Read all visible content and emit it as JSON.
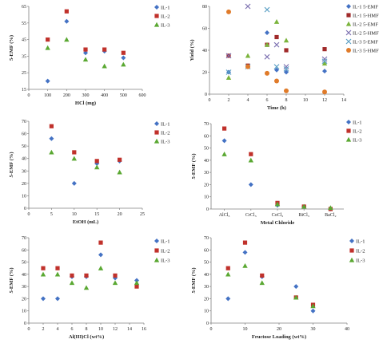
{
  "colors": {
    "il1": "#4472c4",
    "il2": "#c0312b",
    "il3": "#5aa832",
    "emf1": "#4472c4",
    "emf2": "#a02a2a",
    "emf3": "#7bb43c",
    "hmf1": "#7b6fb0",
    "hmf2": "#5a9fc4",
    "hmf3": "#e07b2a",
    "axis": "#808080"
  },
  "chart_data": [
    {
      "id": "hcl",
      "type": "scatter",
      "xlabel": "HCl (mg)",
      "ylabel": "5-EMF (%)",
      "xlim": [
        0,
        600
      ],
      "ylim": [
        15,
        65
      ],
      "xticks": [
        0,
        100,
        200,
        300,
        400,
        500,
        600
      ],
      "yticks": [
        15,
        25,
        35,
        45,
        55,
        65
      ],
      "legend_position": "top-right",
      "series": [
        {
          "name": "IL-1",
          "marker": "diamond",
          "color_key": "il1",
          "x": [
            100,
            200,
            300,
            400,
            500
          ],
          "y": [
            20,
            56,
            37,
            38,
            34
          ]
        },
        {
          "name": "IL-2",
          "marker": "square",
          "color_key": "il2",
          "x": [
            100,
            200,
            300,
            400,
            500
          ],
          "y": [
            45,
            62,
            39,
            39,
            37
          ]
        },
        {
          "name": "IL-3",
          "marker": "triangle",
          "color_key": "il3",
          "x": [
            100,
            200,
            300,
            400,
            500
          ],
          "y": [
            40,
            45,
            33,
            29,
            30
          ]
        }
      ]
    },
    {
      "id": "time",
      "type": "scatter",
      "xlabel": "Time (h)",
      "ylabel": "Yield (%)",
      "xlim": [
        0,
        14
      ],
      "ylim": [
        0,
        80
      ],
      "xticks": [
        0,
        2,
        4,
        6,
        8,
        10,
        12,
        14
      ],
      "yticks": [
        0,
        20,
        40,
        60,
        80
      ],
      "legend_position": "right",
      "series": [
        {
          "name": "IL-1 5-EMF",
          "marker": "diamond",
          "color_key": "emf1",
          "x": [
            2,
            4,
            6,
            7,
            8,
            12
          ],
          "y": [
            20,
            25,
            56,
            22,
            20,
            21
          ]
        },
        {
          "name": "IL-1 5-HMF",
          "marker": "square",
          "color_key": "emf2",
          "x": [
            2,
            4,
            6,
            7,
            8,
            12
          ],
          "y": [
            35,
            26,
            45,
            52,
            40,
            41
          ]
        },
        {
          "name": "IL-2 5-EMF",
          "marker": "triangle",
          "color_key": "emf3",
          "x": [
            2,
            4,
            6,
            7,
            8,
            12
          ],
          "y": [
            15,
            35,
            45,
            66,
            49,
            28
          ]
        },
        {
          "name": "IL-2 5-HMF",
          "marker": "x",
          "color_key": "hmf1",
          "x": [
            2,
            4,
            6,
            7,
            8,
            12
          ],
          "y": [
            35,
            80,
            34,
            45,
            25,
            32
          ]
        },
        {
          "name": "IL-3 5-EMF",
          "marker": "x",
          "color_key": "hmf2",
          "x": [
            2,
            4,
            6,
            7,
            8,
            12
          ],
          "y": [
            20,
            25,
            77,
            25,
            23,
            30
          ]
        },
        {
          "name": "IL-3 5-HMF",
          "marker": "circle",
          "color_key": "hmf3",
          "x": [
            2,
            4,
            6,
            7,
            8,
            12
          ],
          "y": [
            75,
            25,
            19,
            12,
            3,
            2
          ]
        }
      ]
    },
    {
      "id": "etoh",
      "type": "scatter",
      "xlabel": "EtOH (mL)",
      "ylabel": "5-EMF (%)",
      "xlim": [
        0,
        25
      ],
      "ylim": [
        0,
        70
      ],
      "xticks": [
        0,
        5,
        10,
        15,
        20,
        25
      ],
      "yticks": [
        0,
        10,
        20,
        30,
        40,
        50,
        60,
        70
      ],
      "legend_position": "top-right",
      "series": [
        {
          "name": "IL-1",
          "marker": "diamond",
          "color_key": "il1",
          "x": [
            5,
            10,
            15,
            20
          ],
          "y": [
            56,
            20,
            36,
            38
          ]
        },
        {
          "name": "IL-2",
          "marker": "square",
          "color_key": "il2",
          "x": [
            5,
            10,
            15,
            20
          ],
          "y": [
            66,
            45,
            38,
            39
          ]
        },
        {
          "name": "IL-3",
          "marker": "triangle",
          "color_key": "il3",
          "x": [
            5,
            10,
            15,
            20
          ],
          "y": [
            45,
            40,
            33,
            29
          ]
        }
      ]
    },
    {
      "id": "metal",
      "type": "scatter",
      "xlabel": "Metal Chloride",
      "ylabel": "5-EMF (%)",
      "categories": [
        "AlCl₃",
        "CrCl₃",
        "CoCl₂",
        "BiCl₃",
        "BaCl₂"
      ],
      "ylim": [
        0,
        70
      ],
      "legend_position": "top-right",
      "series": [
        {
          "name": "IL-1",
          "marker": "diamond",
          "color_key": "il1",
          "values": [
            56,
            20,
            3,
            2,
            0
          ]
        },
        {
          "name": "IL-2",
          "marker": "square",
          "color_key": "il2",
          "values": [
            66,
            45,
            5,
            2,
            0
          ]
        },
        {
          "name": "IL-3",
          "marker": "triangle",
          "color_key": "il3",
          "values": [
            45,
            40,
            4,
            2,
            1
          ]
        }
      ]
    },
    {
      "id": "al",
      "type": "scatter",
      "xlabel": "Al(III)Cl (wt%)",
      "ylabel": "5-EMF (%)",
      "xlim": [
        0,
        16
      ],
      "ylim": [
        0,
        70
      ],
      "xticks": [
        0,
        2,
        4,
        6,
        8,
        10,
        12,
        14,
        16
      ],
      "yticks": [
        0,
        10,
        20,
        30,
        40,
        50,
        60,
        70
      ],
      "legend_position": "top-right",
      "series": [
        {
          "name": "IL-1",
          "marker": "diamond",
          "color_key": "il1",
          "x": [
            2,
            4,
            6,
            8,
            10,
            12,
            15
          ],
          "y": [
            20,
            20,
            38,
            38,
            56,
            37,
            35
          ]
        },
        {
          "name": "IL-2",
          "marker": "square",
          "color_key": "il2",
          "x": [
            2,
            4,
            6,
            8,
            10,
            12,
            15
          ],
          "y": [
            45,
            45,
            39,
            39,
            66,
            39,
            30
          ]
        },
        {
          "name": "IL-3",
          "marker": "triangle",
          "color_key": "il3",
          "x": [
            2,
            4,
            6,
            8,
            10,
            12,
            15
          ],
          "y": [
            40,
            40,
            33,
            29,
            45,
            33,
            33
          ]
        }
      ]
    },
    {
      "id": "fructose",
      "type": "scatter",
      "xlabel": "Fructose Loading (wt%)",
      "ylabel": "5-EMF (%)",
      "xlim": [
        0,
        40
      ],
      "ylim": [
        0,
        70
      ],
      "xticks": [
        0,
        10,
        20,
        30,
        40
      ],
      "yticks": [
        0,
        10,
        20,
        30,
        40,
        50,
        60,
        70
      ],
      "legend_position": "top-right",
      "series": [
        {
          "name": "IL-1",
          "marker": "diamond",
          "color_key": "il1",
          "x": [
            5,
            10,
            15,
            25,
            30
          ],
          "y": [
            20,
            58,
            38,
            30,
            10
          ]
        },
        {
          "name": "IL-2",
          "marker": "square",
          "color_key": "il2",
          "x": [
            5,
            10,
            15,
            25,
            30
          ],
          "y": [
            45,
            66,
            39,
            21,
            15
          ]
        },
        {
          "name": "IL-3",
          "marker": "triangle",
          "color_key": "il3",
          "x": [
            5,
            10,
            15,
            25,
            30
          ],
          "y": [
            40,
            47,
            33,
            21,
            14
          ]
        }
      ]
    }
  ]
}
